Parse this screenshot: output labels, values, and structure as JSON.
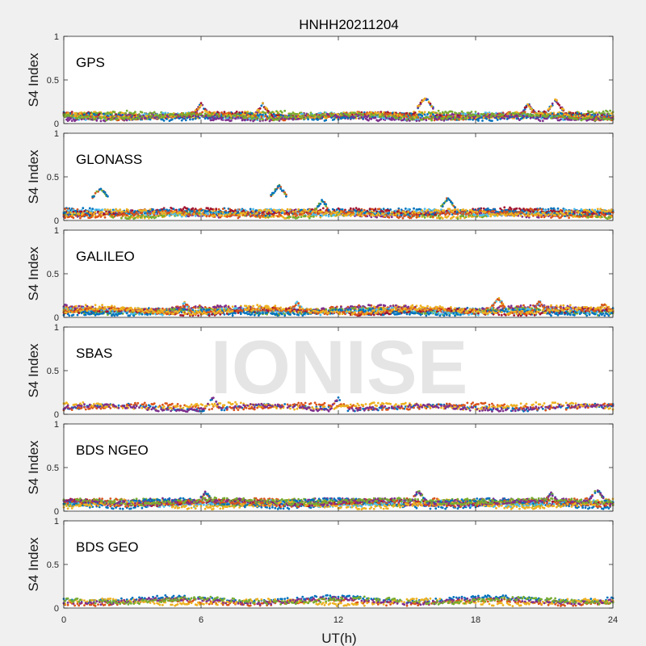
{
  "colors": {
    "background": "#f0f0f0",
    "plot_bg": "#ffffff",
    "series": [
      "#0072bd",
      "#d95319",
      "#edb120",
      "#7e2f8e",
      "#77ac30",
      "#4dbeee",
      "#a2142f"
    ],
    "watermark": "#e3e3e3"
  },
  "watermark": {
    "text": "IONISE"
  },
  "chart_data": {
    "type": "scatter",
    "title": "HNHH20211204",
    "xlabel": "UT(h)",
    "ylabel": "S4 Index",
    "xlim": [
      0,
      24
    ],
    "ylim": [
      0,
      1
    ],
    "xticks": [
      0,
      6,
      12,
      18,
      24
    ],
    "yticks": [
      0,
      0.5,
      1
    ],
    "ytick_labels": [
      "0",
      "0.5",
      "1"
    ],
    "grid": false,
    "panels": [
      {
        "label": "GPS",
        "series_count": 12,
        "typical_value": 0.08,
        "peaks": [
          {
            "x": 6.0,
            "y": 0.22
          },
          {
            "x": 8.7,
            "y": 0.22
          },
          {
            "x": 15.8,
            "y": 0.3
          },
          {
            "x": 20.3,
            "y": 0.22
          },
          {
            "x": 21.5,
            "y": 0.27
          }
        ]
      },
      {
        "label": "GLONASS",
        "series_count": 10,
        "typical_value": 0.09,
        "peaks": [
          {
            "x": 1.6,
            "y": 0.38
          },
          {
            "x": 9.4,
            "y": 0.4
          },
          {
            "x": 11.3,
            "y": 0.23
          },
          {
            "x": 16.8,
            "y": 0.26
          }
        ]
      },
      {
        "label": "GALILEO",
        "series_count": 10,
        "typical_value": 0.08,
        "peaks": [
          {
            "x": 5.3,
            "y": 0.17
          },
          {
            "x": 10.2,
            "y": 0.17
          },
          {
            "x": 19.0,
            "y": 0.22
          },
          {
            "x": 20.8,
            "y": 0.18
          },
          {
            "x": 23.6,
            "y": 0.16
          }
        ]
      },
      {
        "label": "SBAS",
        "series_count": 4,
        "typical_value": 0.1,
        "peaks": [
          {
            "x": 6.5,
            "y": 0.19
          },
          {
            "x": 12.0,
            "y": 0.18
          }
        ]
      },
      {
        "label": "BDS NGEO",
        "series_count": 12,
        "typical_value": 0.09,
        "peaks": [
          {
            "x": 6.2,
            "y": 0.22
          },
          {
            "x": 15.5,
            "y": 0.23
          },
          {
            "x": 21.3,
            "y": 0.21
          },
          {
            "x": 23.3,
            "y": 0.25
          }
        ]
      },
      {
        "label": "BDS GEO",
        "series_count": 5,
        "typical_value": 0.09,
        "peaks": []
      }
    ]
  }
}
